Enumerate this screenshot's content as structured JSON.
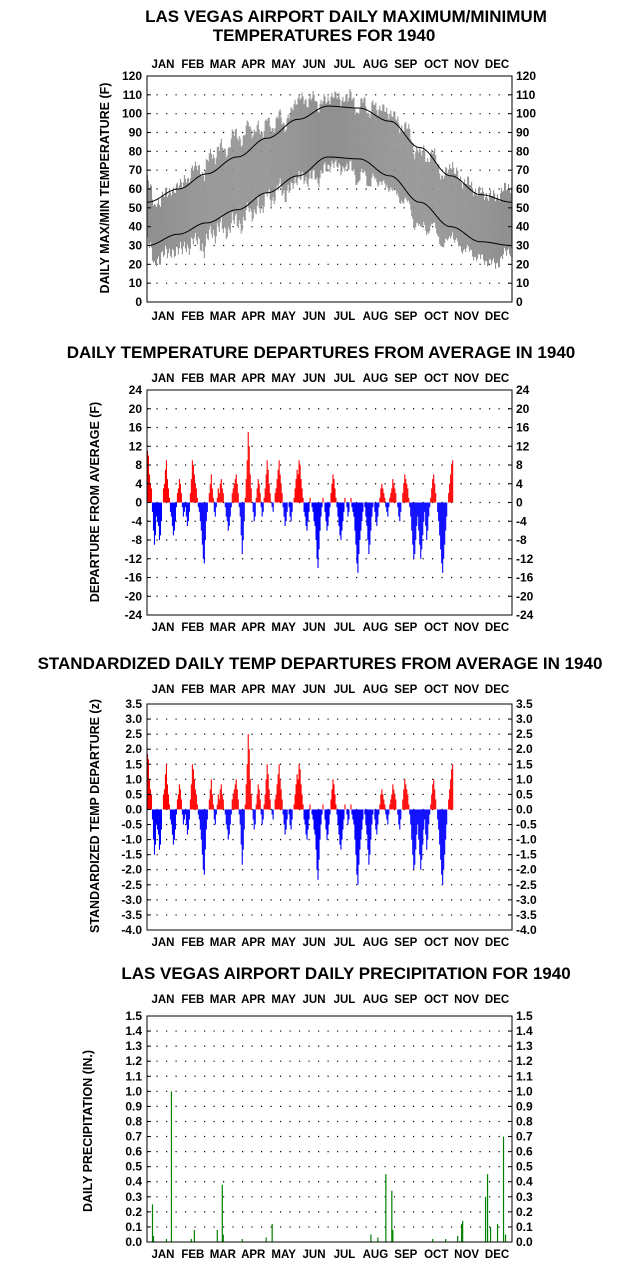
{
  "months": [
    "JAN",
    "FEB",
    "MAR",
    "APR",
    "MAY",
    "JUN",
    "JUL",
    "AUG",
    "SEP",
    "OCT",
    "NOV",
    "DEC"
  ],
  "colors": {
    "range": "#909090",
    "normal": "#000000",
    "above": "#ff0000",
    "below": "#0000ff",
    "precip": "#008000",
    "grid": "#000000"
  },
  "chart_data": [
    {
      "type": "area",
      "title_line1": "LAS VEGAS AIRPORT DAILY MAXIMUM/MINIMUM",
      "title_line2": "TEMPERATURES FOR 1940",
      "ylabel": "DAILY MAX/MIN TEMPERATURE (F)",
      "ylim": [
        0,
        120
      ],
      "yticks": [
        "0",
        "10",
        "20",
        "30",
        "40",
        "50",
        "60",
        "70",
        "80",
        "90",
        "100",
        "110",
        "120"
      ],
      "grid": true,
      "x_unit": "day of year 1940",
      "series": [
        {
          "name": "",
          "kind": "daily max (upper envelope)",
          "monthly_values": [
            [
              1,
              58
            ],
            [
              15,
              55
            ],
            [
              32,
              62
            ],
            [
              46,
              68
            ],
            [
              60,
              75
            ],
            [
              74,
              80
            ],
            [
              91,
              88
            ],
            [
              105,
              90
            ],
            [
              121,
              92
            ],
            [
              135,
              95
            ],
            [
              152,
              105
            ],
            [
              166,
              110
            ],
            [
              182,
              108
            ],
            [
              196,
              110
            ],
            [
              213,
              108
            ],
            [
              227,
              105
            ],
            [
              244,
              100
            ],
            [
              258,
              92
            ],
            [
              274,
              84
            ],
            [
              288,
              76
            ],
            [
              305,
              70
            ],
            [
              319,
              64
            ],
            [
              335,
              58
            ],
            [
              349,
              56
            ],
            [
              366,
              62
            ]
          ]
        },
        {
          "name": "",
          "kind": "daily min (lower envelope)",
          "monthly_values": [
            [
              1,
              28
            ],
            [
              15,
              26
            ],
            [
              32,
              30
            ],
            [
              46,
              32
            ],
            [
              60,
              36
            ],
            [
              74,
              40
            ],
            [
              91,
              44
            ],
            [
              105,
              48
            ],
            [
              121,
              55
            ],
            [
              135,
              60
            ],
            [
              152,
              65
            ],
            [
              166,
              70
            ],
            [
              182,
              74
            ],
            [
              196,
              75
            ],
            [
              213,
              72
            ],
            [
              227,
              68
            ],
            [
              244,
              62
            ],
            [
              258,
              55
            ],
            [
              274,
              46
            ],
            [
              288,
              40
            ],
            [
              305,
              35
            ],
            [
              319,
              30
            ],
            [
              335,
              25
            ],
            [
              349,
              22
            ],
            [
              366,
              30
            ]
          ]
        },
        {
          "name": "",
          "kind": "normal max",
          "monthly_values": [
            [
              1,
              53
            ],
            [
              32,
              60
            ],
            [
              60,
              68
            ],
            [
              91,
              77
            ],
            [
              121,
              87
            ],
            [
              152,
              97
            ],
            [
              182,
              104
            ],
            [
              213,
              103
            ],
            [
              244,
              96
            ],
            [
              274,
              82
            ],
            [
              305,
              67
            ],
            [
              335,
              57
            ],
            [
              366,
              53
            ]
          ]
        },
        {
          "name": "",
          "kind": "normal min",
          "monthly_values": [
            [
              1,
              30
            ],
            [
              32,
              36
            ],
            [
              60,
              42
            ],
            [
              91,
              49
            ],
            [
              121,
              58
            ],
            [
              152,
              67
            ],
            [
              182,
              77
            ],
            [
              213,
              76
            ],
            [
              244,
              67
            ],
            [
              274,
              53
            ],
            [
              305,
              40
            ],
            [
              335,
              32
            ],
            [
              366,
              30
            ]
          ]
        }
      ]
    },
    {
      "type": "bar",
      "title": "DAILY TEMPERATURE DEPARTURES FROM AVERAGE IN 1940",
      "ylabel": "DEPARTURE FROM AVERAGE (F)",
      "ylim": [
        -24,
        24
      ],
      "yticks": [
        "-24",
        "-20",
        "-16",
        "-12",
        "-8",
        "-4",
        "0",
        "4",
        "8",
        "12",
        "16",
        "20",
        "24"
      ],
      "grid": true,
      "x_unit": "day of year 1940",
      "values": [
        11,
        10,
        6,
        4,
        3,
        -2,
        -6,
        -9,
        -7,
        -3,
        -4,
        -5,
        -8,
        -7,
        -4,
        0,
        3,
        4,
        7,
        9,
        5,
        3,
        1,
        -2,
        -3,
        -5,
        -7,
        -6,
        -4,
        -1,
        2,
        3,
        5,
        4,
        2,
        -1,
        -3,
        -2,
        -1,
        -3,
        -5,
        -4,
        -2,
        2,
        5,
        9,
        8,
        6,
        4,
        3,
        1,
        -1,
        -2,
        -4,
        -6,
        -9,
        -12,
        -13,
        -8,
        -4,
        -2,
        0,
        2,
        4,
        6,
        3,
        1,
        -2,
        -3,
        -1,
        1,
        3,
        2,
        4,
        5,
        3,
        2,
        0,
        -1,
        -3,
        -4,
        -6,
        -5,
        -3,
        -1,
        2,
        3,
        4,
        5,
        6,
        4,
        2,
        -1,
        -3,
        -7,
        -11,
        -8,
        -4,
        1,
        5,
        9,
        15,
        12,
        6,
        3,
        0,
        -2,
        -4,
        -3,
        1,
        3,
        5,
        4,
        2,
        -1,
        -3,
        -2,
        1,
        3,
        6,
        9,
        7,
        4,
        2,
        0,
        -1,
        -2,
        0,
        2,
        3,
        5,
        7,
        9,
        6,
        4,
        2,
        -1,
        -3,
        -5,
        -4,
        -2,
        0,
        -1,
        -3,
        -4,
        -2,
        0,
        1,
        3,
        5,
        7,
        6,
        9,
        8,
        5,
        3,
        1,
        -2,
        -3,
        -5,
        -6,
        -4,
        -2,
        1,
        0,
        -1,
        -2,
        -4,
        -5,
        -8,
        -12,
        -14,
        -10,
        -6,
        -3,
        -1,
        1,
        0,
        -2,
        -4,
        -6,
        -5,
        -3,
        -1,
        2,
        4,
        6,
        5,
        3,
        1,
        -1,
        -3,
        -5,
        -7,
        -8,
        -6,
        -4,
        -2,
        1,
        0,
        -1,
        -3,
        -2,
        0,
        1,
        -1,
        -2,
        -3,
        -6,
        -9,
        -13,
        -15,
        -11,
        -8,
        -6,
        -4,
        -2,
        0,
        -1,
        -3,
        -5,
        -8,
        -11,
        -9,
        -6,
        -3,
        -1,
        0,
        -2,
        -4,
        -5,
        -3,
        -1,
        1,
        3,
        4,
        3,
        2,
        1,
        -1,
        -2,
        -3,
        -1,
        1,
        2,
        3,
        5,
        4,
        3,
        2,
        0,
        -1,
        -3,
        -4,
        -2,
        0,
        2,
        4,
        6,
        5,
        4,
        3,
        1,
        -1,
        -3,
        -6,
        -9,
        -12,
        -11,
        -8,
        -5,
        -3,
        -6,
        -9,
        -12,
        -10,
        -7,
        -4,
        -2,
        -5,
        -8,
        -6,
        -3,
        -1,
        1,
        3,
        5,
        6,
        4,
        2,
        0,
        -2,
        -4,
        -7,
        -10,
        -13,
        -15,
        -12,
        -9,
        -6,
        -3,
        0,
        2,
        4,
        6,
        8,
        9
      ]
    },
    {
      "type": "bar",
      "title": "STANDARDIZED DAILY TEMP DEPARTURES FROM AVERAGE IN 1940",
      "ylabel": "STANDARDIZED TEMP DEPARTURE (z)",
      "ylim": [
        -4.0,
        3.5
      ],
      "yticks": [
        "-4.0",
        "-3.5",
        "-3.0",
        "-2.5",
        "-2.0",
        "-1.5",
        "-1.0",
        "-0.5",
        "0.0",
        "0.5",
        "1.0",
        "1.5",
        "2.0",
        "2.5",
        "3.0",
        "3.5"
      ],
      "grid": true,
      "x_unit": "day of year 1940",
      "values_scale": "departure_f_divided_by_6"
    },
    {
      "type": "bar",
      "title": "LAS VEGAS AIRPORT DAILY PRECIPITATION FOR 1940",
      "ylabel": "DAILY PRECIPITATION (IN.)",
      "ylim": [
        0,
        1.5
      ],
      "yticks": [
        "0.0",
        "0.1",
        "0.2",
        "0.3",
        "0.4",
        "0.5",
        "0.6",
        "0.7",
        "0.8",
        "0.9",
        "1.0",
        "1.1",
        "1.2",
        "1.3",
        "1.4",
        "1.5"
      ],
      "grid": true,
      "x_unit": "day of year 1940",
      "points": [
        [
          6,
          0.25
        ],
        [
          7,
          0.04
        ],
        [
          20,
          0.02
        ],
        [
          25,
          1.0
        ],
        [
          45,
          0.02
        ],
        [
          48,
          0.08
        ],
        [
          71,
          0.08
        ],
        [
          76,
          0.38
        ],
        [
          77,
          0.05
        ],
        [
          96,
          0.02
        ],
        [
          120,
          0.03
        ],
        [
          126,
          0.12
        ],
        [
          225,
          0.05
        ],
        [
          232,
          0.03
        ],
        [
          240,
          0.45
        ],
        [
          246,
          0.34
        ],
        [
          247,
          0.08
        ],
        [
          287,
          0.02
        ],
        [
          300,
          0.02
        ],
        [
          312,
          0.04
        ],
        [
          316,
          0.12
        ],
        [
          317,
          0.14
        ],
        [
          340,
          0.3
        ],
        [
          342,
          0.45
        ],
        [
          345,
          0.1
        ],
        [
          352,
          0.12
        ],
        [
          358,
          0.7
        ],
        [
          360,
          0.05
        ]
      ]
    }
  ]
}
